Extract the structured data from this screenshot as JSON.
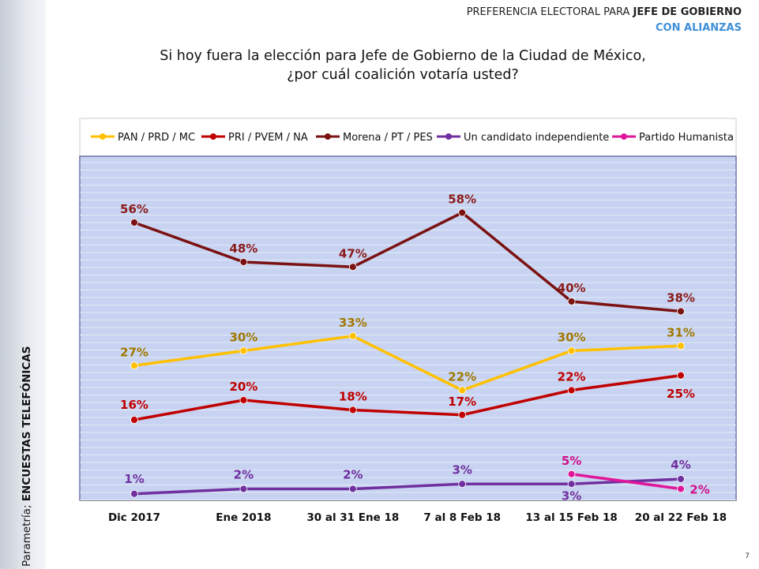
{
  "header": {
    "line1_normal": "PREFERENCIA ELECTORAL PARA ",
    "line1_bold": "JEFE DE GOBIERNO",
    "line2": "CON ALIANZAS"
  },
  "question": [
    "Si hoy fuera la elección para Jefe de Gobierno de la Ciudad de México,",
    "¿por cuál coalición votaría usted?"
  ],
  "side_label": {
    "source": "Parametría; ",
    "method": "ENCUESTAS TELEFÓNICAS"
  },
  "page_number": "7",
  "chart_data": {
    "type": "line",
    "categories": [
      "Dic 2017",
      "Ene 2018",
      "30 al 31 Ene 18",
      "7 al 8 Feb 18",
      "13 al 15 Feb 18",
      "20 al 22 Feb 18"
    ],
    "ylim": [
      0,
      70
    ],
    "grid": true,
    "legend": "top",
    "series": [
      {
        "name": "PAN / PRD / MC",
        "color": "#FFC000",
        "label_color": "#A07800",
        "values": [
          27,
          30,
          33,
          22,
          30,
          31
        ]
      },
      {
        "name": "PRI / PVEM / NA",
        "color": "#C00000",
        "label_color": "#C00000",
        "values": [
          16,
          20,
          18,
          17,
          22,
          25
        ]
      },
      {
        "name": "Morena / PT / PES",
        "color": "#7B1212",
        "label_color": "#8B1A1A",
        "values": [
          56,
          48,
          47,
          58,
          40,
          38
        ]
      },
      {
        "name": "Un candidato independiente",
        "color": "#7030A0",
        "label_color": "#7030A0",
        "values": [
          1,
          2,
          2,
          3,
          3,
          4
        ]
      },
      {
        "name": "Partido Humanista",
        "color": "#E0169A",
        "label_color": "#D0108C",
        "values": [
          null,
          null,
          null,
          null,
          5,
          2
        ]
      }
    ]
  }
}
